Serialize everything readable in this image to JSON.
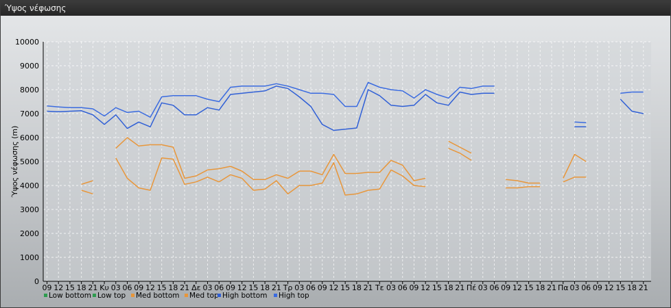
{
  "window": {
    "title": "Ύψος νέφωσης"
  },
  "chart_data": {
    "type": "line",
    "title": "",
    "ylabel": "Ύψος νέφωσης (m)",
    "xlabel": "",
    "ylim": [
      0,
      10000
    ],
    "yticks": [
      0,
      1000,
      2000,
      3000,
      4000,
      5000,
      6000,
      7000,
      8000,
      9000,
      10000
    ],
    "x_tick_labels": [
      "09",
      "12",
      "15",
      "18",
      "21",
      "Κυ",
      "03",
      "06",
      "09",
      "12",
      "15",
      "18",
      "21",
      "Δε",
      "03",
      "06",
      "09",
      "12",
      "15",
      "18",
      "21",
      "Τρ",
      "03",
      "06",
      "09",
      "12",
      "15",
      "18",
      "21",
      "Τε",
      "03",
      "06",
      "09",
      "12",
      "15",
      "18",
      "21",
      "Πέ",
      "03",
      "06",
      "09",
      "12",
      "15",
      "18",
      "21",
      "Πα",
      "03",
      "06",
      "09",
      "12",
      "15",
      "18",
      "21"
    ],
    "grid": true,
    "legend_position": "bottom-left",
    "series": [
      {
        "name": "Low bottom",
        "color": "#2e9c4f",
        "values": [
          null,
          null,
          null,
          null,
          null,
          null,
          null,
          null,
          null,
          null,
          null,
          null,
          null,
          null,
          null,
          null,
          null,
          null,
          null,
          null,
          null,
          null,
          null,
          null,
          null,
          null,
          null,
          null,
          null,
          null,
          null,
          null,
          null,
          null,
          null,
          null,
          null,
          null,
          null,
          null,
          null,
          null,
          null,
          null,
          null,
          null,
          null,
          null,
          null,
          null,
          null,
          null,
          null
        ]
      },
      {
        "name": "Low top",
        "color": "#2e9c4f",
        "values": [
          null,
          null,
          null,
          null,
          null,
          null,
          null,
          null,
          null,
          null,
          null,
          null,
          null,
          null,
          null,
          null,
          null,
          null,
          null,
          null,
          null,
          null,
          null,
          null,
          null,
          null,
          null,
          null,
          null,
          null,
          null,
          null,
          null,
          null,
          null,
          null,
          null,
          null,
          null,
          null,
          null,
          null,
          null,
          null,
          null,
          null,
          null,
          null,
          null,
          null,
          null,
          null,
          null
        ]
      },
      {
        "name": "Med bottom",
        "color": "#e8963a",
        "values": [
          null,
          null,
          null,
          3800,
          3650,
          null,
          5150,
          4300,
          3900,
          3800,
          5150,
          5100,
          4050,
          4150,
          4350,
          4150,
          4450,
          4300,
          3800,
          3850,
          4200,
          3650,
          4000,
          4000,
          4100,
          4950,
          3600,
          3650,
          3800,
          3850,
          4650,
          4400,
          4000,
          3950,
          null,
          5550,
          5350,
          5050,
          null,
          null,
          3900,
          3900,
          3950,
          3950,
          null,
          4150,
          4350,
          4350,
          null,
          null,
          null,
          null,
          null
        ]
      },
      {
        "name": "Med top",
        "color": "#e8963a",
        "values": [
          null,
          null,
          null,
          4050,
          4200,
          null,
          5550,
          6000,
          5650,
          5700,
          5700,
          5600,
          4300,
          4400,
          4650,
          4700,
          4800,
          4600,
          4250,
          4250,
          4450,
          4300,
          4600,
          4600,
          4450,
          5300,
          4500,
          4500,
          4550,
          4550,
          5050,
          4850,
          4200,
          4300,
          null,
          5850,
          5600,
          5350,
          null,
          null,
          4250,
          4200,
          4100,
          4100,
          null,
          4300,
          5300,
          5000,
          null,
          null,
          null,
          null,
          null
        ]
      },
      {
        "name": "High bottom",
        "color": "#2f5fd6",
        "values": [
          7100,
          7080,
          7100,
          7120,
          6950,
          6550,
          6950,
          6380,
          6650,
          6450,
          7450,
          7350,
          6950,
          6950,
          7250,
          7150,
          7800,
          7850,
          7900,
          7950,
          8150,
          8050,
          7700,
          7300,
          6550,
          6300,
          6350,
          6400,
          8000,
          7750,
          7350,
          7300,
          7350,
          7800,
          7450,
          7350,
          7900,
          7800,
          7850,
          7850,
          null,
          null,
          null,
          null,
          null,
          null,
          6450,
          6450,
          null,
          null,
          7600,
          7100,
          7000
        ]
      },
      {
        "name": "High top",
        "color": "#3a6be0",
        "values": [
          7320,
          7280,
          7250,
          7250,
          7200,
          6900,
          7250,
          7050,
          7100,
          6850,
          7700,
          7750,
          7750,
          7750,
          7600,
          7500,
          8100,
          8150,
          8150,
          8150,
          8250,
          8150,
          8000,
          7850,
          7850,
          7800,
          7300,
          7300,
          8300,
          8100,
          8000,
          7950,
          7650,
          8000,
          7800,
          7650,
          8100,
          8050,
          8150,
          8150,
          null,
          null,
          null,
          null,
          null,
          null,
          6650,
          6620,
          null,
          null,
          7850,
          7900,
          7900
        ]
      }
    ]
  }
}
